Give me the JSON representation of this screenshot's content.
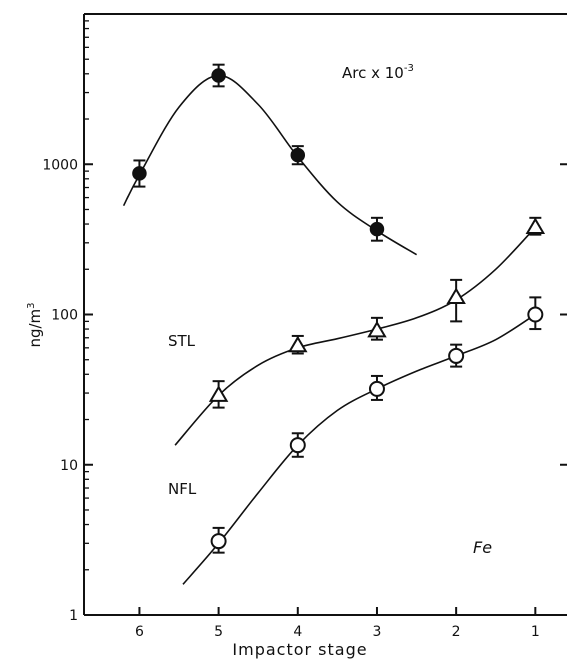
{
  "chart_data": {
    "type": "scatter",
    "xlabel": "Impactor stage",
    "ylabel": "ng/m",
    "ylabel_sup": "3",
    "y_scale": "log",
    "ylim": [
      1,
      10000
    ],
    "xlim": [
      6.7,
      0.6
    ],
    "x_ticks": [
      6,
      5,
      4,
      3,
      2,
      1
    ],
    "x_tick_labels": [
      "6",
      "5",
      "4",
      "3",
      "2",
      "1"
    ],
    "y_ticks": [
      1,
      10,
      100,
      1000
    ],
    "y_tick_labels": [
      "1",
      "10",
      "100",
      "1000"
    ],
    "grid": false,
    "series": [
      {
        "name": "Arc x 10",
        "label_sup": "-3",
        "marker": "filled-circle",
        "x": [
          6,
          5,
          4,
          3
        ],
        "y": [
          870,
          3900,
          1150,
          370
        ],
        "err_low": [
          710,
          3300,
          1000,
          310
        ],
        "err_high": [
          1060,
          4600,
          1320,
          440
        ],
        "curve": [
          [
            6.2,
            530
          ],
          [
            6,
            850
          ],
          [
            5.5,
            2400
          ],
          [
            5,
            3900
          ],
          [
            4.5,
            2500
          ],
          [
            4,
            1120
          ],
          [
            3.5,
            560
          ],
          [
            3,
            360
          ],
          [
            2.5,
            250
          ]
        ]
      },
      {
        "name": "STL",
        "marker": "open-triangle",
        "x": [
          5,
          4,
          3,
          2,
          1
        ],
        "y": [
          29,
          62,
          78,
          130,
          380
        ],
        "err_low": [
          24,
          55,
          68,
          90,
          340
        ],
        "err_high": [
          36,
          72,
          95,
          170,
          440
        ],
        "curve": [
          [
            5.55,
            13.5
          ],
          [
            5,
            29
          ],
          [
            4.5,
            46
          ],
          [
            4,
            60
          ],
          [
            3.5,
            69
          ],
          [
            3,
            80
          ],
          [
            2.5,
            95
          ],
          [
            2,
            125
          ],
          [
            1.5,
            200
          ],
          [
            1,
            380
          ]
        ]
      },
      {
        "name": "NFL",
        "marker": "open-circle",
        "x": [
          5,
          4,
          3,
          2,
          1
        ],
        "y": [
          3.1,
          13.5,
          32,
          53,
          100
        ],
        "err_low": [
          2.6,
          11.3,
          27,
          45,
          80
        ],
        "err_high": [
          3.8,
          16.2,
          39,
          63,
          130
        ],
        "curve": [
          [
            5.45,
            1.6
          ],
          [
            5,
            3.0
          ],
          [
            4.5,
            6.5
          ],
          [
            4,
            13.5
          ],
          [
            3.5,
            23
          ],
          [
            3,
            32
          ],
          [
            2.5,
            42
          ],
          [
            2,
            53
          ],
          [
            1.5,
            68
          ],
          [
            1,
            100
          ]
        ]
      }
    ],
    "annotations": [
      {
        "text": "Fe"
      }
    ]
  }
}
